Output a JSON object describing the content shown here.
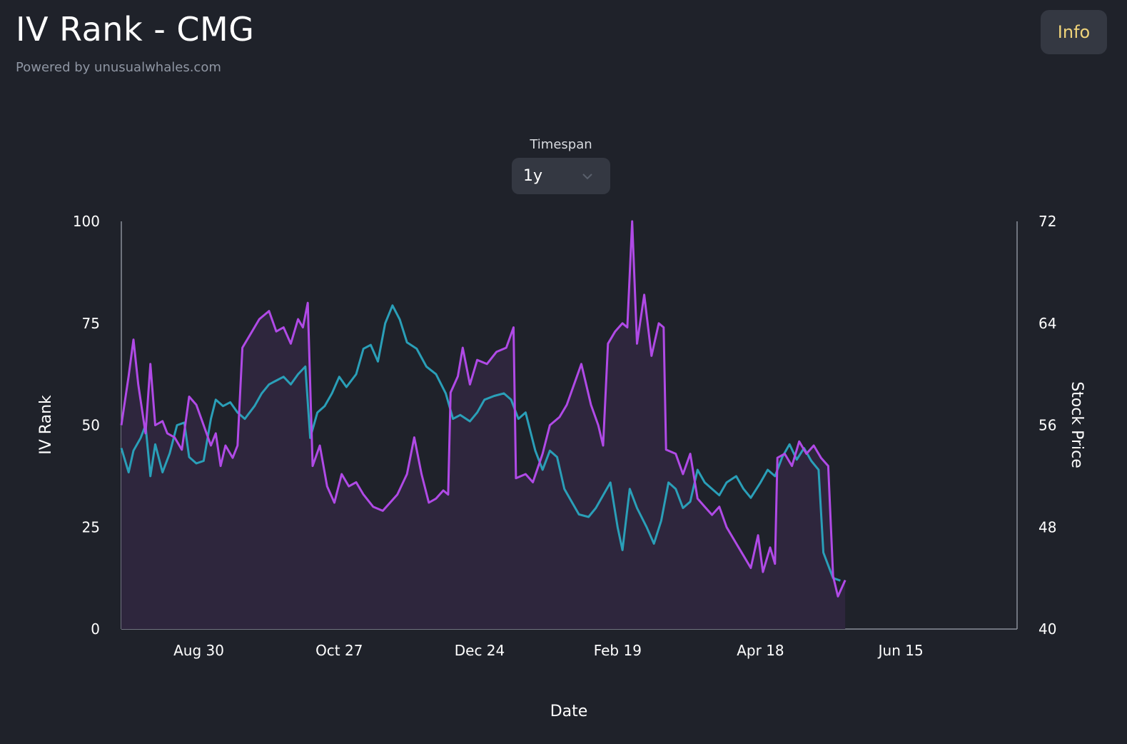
{
  "header": {
    "title": "IV Rank - CMG",
    "subtitle": "Powered by unusualwhales.com",
    "info_label": "Info"
  },
  "timespan": {
    "label": "Timespan",
    "selected": "1y"
  },
  "colors": {
    "background": "#1f222a",
    "iv_rank": "#b04ae6",
    "stock_price": "#2a9fb8",
    "area_fill": "#2e263d",
    "info_text": "#f0d47a"
  },
  "chart_data": {
    "type": "line",
    "xlabel": "Date",
    "ylabel_left": "IV Rank",
    "ylabel_right": "Stock Price",
    "y_left_range": [
      0,
      100
    ],
    "y_right_range": [
      40,
      72
    ],
    "y_left_ticks": [
      "0",
      "25",
      "50",
      "75",
      "100"
    ],
    "y_right_ticks": [
      "40",
      "48",
      "56",
      "64",
      "72"
    ],
    "x_ticks": [
      {
        "label": "Aug 30",
        "date": "2023-08-30"
      },
      {
        "label": "Oct 27",
        "date": "2023-10-27"
      },
      {
        "label": "Dec 24",
        "date": "2023-12-24"
      },
      {
        "label": "Feb 19",
        "date": "2024-02-19"
      },
      {
        "label": "Apr 18",
        "date": "2024-04-18"
      },
      {
        "label": "Jun 15",
        "date": "2024-06-15"
      }
    ],
    "x_range": [
      "2023-07-29",
      "2024-08-02"
    ],
    "series": [
      {
        "name": "IV Rank",
        "axis": "left",
        "points": [
          [
            "2023-07-29",
            50
          ],
          [
            "2023-08-01",
            62
          ],
          [
            "2023-08-03",
            71
          ],
          [
            "2023-08-05",
            60
          ],
          [
            "2023-08-08",
            48
          ],
          [
            "2023-08-10",
            65
          ],
          [
            "2023-08-12",
            50
          ],
          [
            "2023-08-15",
            51
          ],
          [
            "2023-08-17",
            48
          ],
          [
            "2023-08-20",
            47
          ],
          [
            "2023-08-23",
            44
          ],
          [
            "2023-08-26",
            57
          ],
          [
            "2023-08-29",
            55
          ],
          [
            "2023-09-01",
            50
          ],
          [
            "2023-09-04",
            45
          ],
          [
            "2023-09-06",
            48
          ],
          [
            "2023-09-08",
            40
          ],
          [
            "2023-09-10",
            45
          ],
          [
            "2023-09-13",
            42
          ],
          [
            "2023-09-15",
            45
          ],
          [
            "2023-09-17",
            69
          ],
          [
            "2023-09-20",
            72
          ],
          [
            "2023-09-24",
            76
          ],
          [
            "2023-09-28",
            78
          ],
          [
            "2023-10-01",
            73
          ],
          [
            "2023-10-04",
            74
          ],
          [
            "2023-10-07",
            70
          ],
          [
            "2023-10-10",
            76
          ],
          [
            "2023-10-12",
            74
          ],
          [
            "2023-10-14",
            80
          ],
          [
            "2023-10-16",
            40
          ],
          [
            "2023-10-19",
            45
          ],
          [
            "2023-10-22",
            35
          ],
          [
            "2023-10-25",
            31
          ],
          [
            "2023-10-28",
            38
          ],
          [
            "2023-10-31",
            35
          ],
          [
            "2023-11-03",
            36
          ],
          [
            "2023-11-06",
            33
          ],
          [
            "2023-11-10",
            30
          ],
          [
            "2023-11-14",
            29
          ],
          [
            "2023-11-17",
            31
          ],
          [
            "2023-11-20",
            33
          ],
          [
            "2023-11-24",
            38
          ],
          [
            "2023-11-27",
            47
          ],
          [
            "2023-11-30",
            38
          ],
          [
            "2023-12-03",
            31
          ],
          [
            "2023-12-06",
            32
          ],
          [
            "2023-12-09",
            34
          ],
          [
            "2023-12-11",
            33
          ],
          [
            "2023-12-12",
            58
          ],
          [
            "2023-12-15",
            62
          ],
          [
            "2023-12-17",
            69
          ],
          [
            "2023-12-20",
            60
          ],
          [
            "2023-12-23",
            66
          ],
          [
            "2023-12-27",
            65
          ],
          [
            "2023-12-31",
            68
          ],
          [
            "2024-01-04",
            69
          ],
          [
            "2024-01-07",
            74
          ],
          [
            "2024-01-08",
            37
          ],
          [
            "2024-01-12",
            38
          ],
          [
            "2024-01-15",
            36
          ],
          [
            "2024-01-19",
            43
          ],
          [
            "2024-01-22",
            50
          ],
          [
            "2024-01-26",
            52
          ],
          [
            "2024-01-29",
            55
          ],
          [
            "2024-02-01",
            60
          ],
          [
            "2024-02-04",
            65
          ],
          [
            "2024-02-08",
            55
          ],
          [
            "2024-02-11",
            50
          ],
          [
            "2024-02-13",
            45
          ],
          [
            "2024-02-15",
            70
          ],
          [
            "2024-02-18",
            73
          ],
          [
            "2024-02-21",
            75
          ],
          [
            "2024-02-23",
            74
          ],
          [
            "2024-02-25",
            100
          ],
          [
            "2024-02-27",
            70
          ],
          [
            "2024-03-01",
            82
          ],
          [
            "2024-03-04",
            67
          ],
          [
            "2024-03-07",
            75
          ],
          [
            "2024-03-09",
            74
          ],
          [
            "2024-03-10",
            44
          ],
          [
            "2024-03-14",
            43
          ],
          [
            "2024-03-17",
            38
          ],
          [
            "2024-03-20",
            43
          ],
          [
            "2024-03-23",
            32
          ],
          [
            "2024-03-26",
            30
          ],
          [
            "2024-03-29",
            28
          ],
          [
            "2024-04-01",
            30
          ],
          [
            "2024-04-04",
            25
          ],
          [
            "2024-04-08",
            21
          ],
          [
            "2024-04-11",
            18
          ],
          [
            "2024-04-14",
            15
          ],
          [
            "2024-04-17",
            23
          ],
          [
            "2024-04-19",
            14
          ],
          [
            "2024-04-22",
            20
          ],
          [
            "2024-04-24",
            16
          ],
          [
            "2024-04-25",
            42
          ],
          [
            "2024-04-28",
            43
          ],
          [
            "2024-05-01",
            40
          ],
          [
            "2024-05-04",
            46
          ],
          [
            "2024-05-07",
            43
          ],
          [
            "2024-05-10",
            45
          ],
          [
            "2024-05-13",
            42
          ],
          [
            "2024-05-16",
            40
          ],
          [
            "2024-05-18",
            13
          ],
          [
            "2024-05-20",
            8
          ],
          [
            "2024-05-23",
            12
          ]
        ]
      },
      {
        "name": "Stock Price",
        "axis": "right",
        "points": [
          [
            "2023-07-29",
            54.2
          ],
          [
            "2023-08-01",
            52.3
          ],
          [
            "2023-08-03",
            54.0
          ],
          [
            "2023-08-06",
            55.0
          ],
          [
            "2023-08-08",
            56.0
          ],
          [
            "2023-08-10",
            52.0
          ],
          [
            "2023-08-12",
            54.5
          ],
          [
            "2023-08-15",
            52.3
          ],
          [
            "2023-08-18",
            53.8
          ],
          [
            "2023-08-21",
            56.0
          ],
          [
            "2023-08-24",
            56.2
          ],
          [
            "2023-08-26",
            53.5
          ],
          [
            "2023-08-29",
            53.0
          ],
          [
            "2023-09-01",
            53.2
          ],
          [
            "2023-09-04",
            56.5
          ],
          [
            "2023-09-06",
            58.0
          ],
          [
            "2023-09-09",
            57.5
          ],
          [
            "2023-09-12",
            57.8
          ],
          [
            "2023-09-15",
            57.0
          ],
          [
            "2023-09-18",
            56.5
          ],
          [
            "2023-09-22",
            57.5
          ],
          [
            "2023-09-25",
            58.5
          ],
          [
            "2023-09-28",
            59.2
          ],
          [
            "2023-10-01",
            59.5
          ],
          [
            "2023-10-04",
            59.8
          ],
          [
            "2023-10-07",
            59.2
          ],
          [
            "2023-10-10",
            60.0
          ],
          [
            "2023-10-13",
            60.6
          ],
          [
            "2023-10-15",
            55.0
          ],
          [
            "2023-10-18",
            57.0
          ],
          [
            "2023-10-21",
            57.5
          ],
          [
            "2023-10-24",
            58.5
          ],
          [
            "2023-10-27",
            59.8
          ],
          [
            "2023-10-30",
            59.0
          ],
          [
            "2023-11-03",
            60.0
          ],
          [
            "2023-11-06",
            62.0
          ],
          [
            "2023-11-09",
            62.3
          ],
          [
            "2023-11-12",
            61.0
          ],
          [
            "2023-11-15",
            64.0
          ],
          [
            "2023-11-18",
            65.4
          ],
          [
            "2023-11-21",
            64.3
          ],
          [
            "2023-11-24",
            62.5
          ],
          [
            "2023-11-28",
            62.0
          ],
          [
            "2023-12-02",
            60.6
          ],
          [
            "2023-12-06",
            60.0
          ],
          [
            "2023-12-10",
            58.5
          ],
          [
            "2023-12-13",
            56.5
          ],
          [
            "2023-12-16",
            56.8
          ],
          [
            "2023-12-20",
            56.3
          ],
          [
            "2023-12-23",
            57.0
          ],
          [
            "2023-12-26",
            58.0
          ],
          [
            "2023-12-30",
            58.3
          ],
          [
            "2024-01-03",
            58.5
          ],
          [
            "2024-01-06",
            58.0
          ],
          [
            "2024-01-09",
            56.5
          ],
          [
            "2024-01-12",
            57.0
          ],
          [
            "2024-01-16",
            54.0
          ],
          [
            "2024-01-19",
            52.5
          ],
          [
            "2024-01-22",
            54.0
          ],
          [
            "2024-01-25",
            53.5
          ],
          [
            "2024-01-28",
            51.0
          ],
          [
            "2024-01-31",
            50.0
          ],
          [
            "2024-02-03",
            49.0
          ],
          [
            "2024-02-07",
            48.8
          ],
          [
            "2024-02-10",
            49.5
          ],
          [
            "2024-02-13",
            50.5
          ],
          [
            "2024-02-16",
            51.5
          ],
          [
            "2024-02-19",
            48.0
          ],
          [
            "2024-02-21",
            46.2
          ],
          [
            "2024-02-24",
            51.0
          ],
          [
            "2024-02-27",
            49.5
          ],
          [
            "2024-03-02",
            48.0
          ],
          [
            "2024-03-05",
            46.7
          ],
          [
            "2024-03-08",
            48.5
          ],
          [
            "2024-03-11",
            51.5
          ],
          [
            "2024-03-14",
            51.0
          ],
          [
            "2024-03-17",
            49.5
          ],
          [
            "2024-03-20",
            50.0
          ],
          [
            "2024-03-23",
            52.5
          ],
          [
            "2024-03-26",
            51.5
          ],
          [
            "2024-03-29",
            51.0
          ],
          [
            "2024-04-01",
            50.5
          ],
          [
            "2024-04-04",
            51.5
          ],
          [
            "2024-04-08",
            52.0
          ],
          [
            "2024-04-11",
            51.0
          ],
          [
            "2024-04-14",
            50.3
          ],
          [
            "2024-04-18",
            51.5
          ],
          [
            "2024-04-21",
            52.5
          ],
          [
            "2024-04-24",
            52.0
          ],
          [
            "2024-04-27",
            53.5
          ],
          [
            "2024-04-30",
            54.5
          ],
          [
            "2024-05-03",
            53.3
          ],
          [
            "2024-05-06",
            54.2
          ],
          [
            "2024-05-09",
            53.2
          ],
          [
            "2024-05-12",
            52.5
          ],
          [
            "2024-05-14",
            46.0
          ],
          [
            "2024-05-16",
            45.0
          ],
          [
            "2024-05-18",
            44.0
          ],
          [
            "2024-05-21",
            43.8
          ]
        ]
      }
    ]
  }
}
